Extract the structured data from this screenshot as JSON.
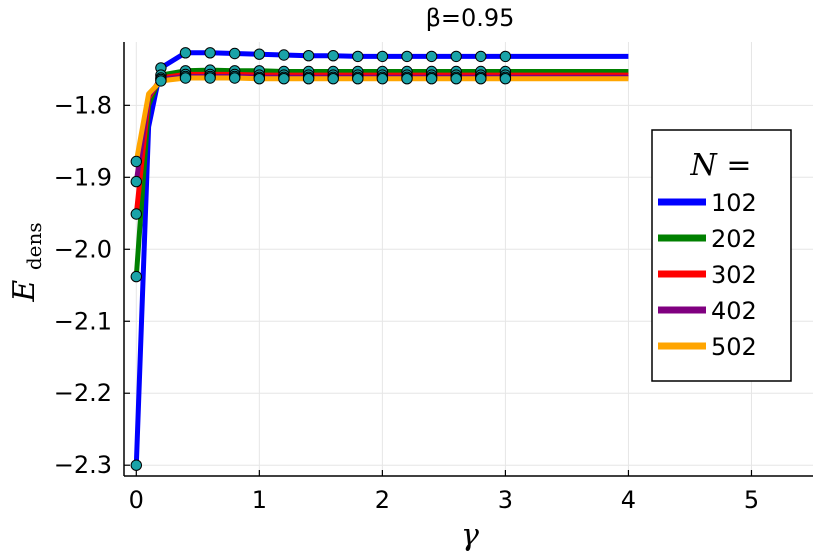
{
  "chart_data": {
    "type": "line",
    "title": "β=0.95",
    "xlabel": "γ",
    "ylabel_main": "E",
    "ylabel_sub": "dens",
    "xlim": [
      -0.1,
      5.5
    ],
    "ylim": [
      -2.315,
      -1.712
    ],
    "x_ticks": [
      0,
      1,
      2,
      3,
      4,
      5
    ],
    "x_tick_labels": [
      "0",
      "1",
      "2",
      "3",
      "4",
      "5"
    ],
    "y_ticks": [
      -1.8,
      -1.9,
      -2.0,
      -2.1,
      -2.2,
      -2.3
    ],
    "y_tick_labels": [
      "−1.8",
      "−1.9",
      "−2.0",
      "−2.1",
      "−2.2",
      "−2.3"
    ],
    "grid": true,
    "legend_title": "N =",
    "legend_position": "right",
    "marker_color": "#1aa3a8",
    "series": [
      {
        "name": "102",
        "color": "#0000ff",
        "line_x": [
          0,
          0.1,
          0.2,
          0.4,
          0.6,
          0.8,
          1.0,
          1.2,
          1.4,
          1.6,
          1.8,
          2.0,
          2.2,
          2.4,
          2.6,
          2.8,
          3.0,
          4.0
        ],
        "line_y": [
          -2.3,
          -1.83,
          -1.748,
          -1.727,
          -1.727,
          -1.728,
          -1.729,
          -1.73,
          -1.731,
          -1.731,
          -1.732,
          -1.732,
          -1.732,
          -1.732,
          -1.732,
          -1.732,
          -1.732,
          -1.732
        ],
        "markers_x": [
          0,
          0.2,
          0.4,
          0.6,
          0.8,
          1.0,
          1.2,
          1.4,
          1.6,
          1.8,
          2.0,
          2.2,
          2.4,
          2.6,
          2.8,
          3.0
        ],
        "markers_y": [
          -2.3,
          -1.748,
          -1.727,
          -1.727,
          -1.728,
          -1.729,
          -1.73,
          -1.731,
          -1.731,
          -1.732,
          -1.732,
          -1.732,
          -1.732,
          -1.732,
          -1.732,
          -1.732
        ]
      },
      {
        "name": "202",
        "color": "#008000",
        "line_x": [
          0,
          0.1,
          0.2,
          0.4,
          0.6,
          0.8,
          1.0,
          1.2,
          1.4,
          1.6,
          1.8,
          2.0,
          2.2,
          2.4,
          2.6,
          2.8,
          3.0,
          4.0
        ],
        "line_y": [
          -2.038,
          -1.8,
          -1.758,
          -1.752,
          -1.751,
          -1.752,
          -1.752,
          -1.753,
          -1.753,
          -1.753,
          -1.753,
          -1.753,
          -1.753,
          -1.753,
          -1.753,
          -1.753,
          -1.753,
          -1.753
        ],
        "markers_x": [
          0,
          0.2,
          0.4,
          0.6,
          0.8,
          1.0,
          1.2,
          1.4,
          1.6,
          1.8,
          2.0,
          2.2,
          2.4,
          2.6,
          2.8,
          3.0
        ],
        "markers_y": [
          -2.038,
          -1.758,
          -1.752,
          -1.751,
          -1.752,
          -1.752,
          -1.753,
          -1.753,
          -1.753,
          -1.753,
          -1.753,
          -1.753,
          -1.753,
          -1.753,
          -1.753,
          -1.753
        ]
      },
      {
        "name": "302",
        "color": "#ff0000",
        "line_x": [
          0,
          0.1,
          0.2,
          0.4,
          0.6,
          0.8,
          1.0,
          1.2,
          1.4,
          1.6,
          1.8,
          2.0,
          2.2,
          2.4,
          2.6,
          2.8,
          3.0,
          4.0
        ],
        "line_y": [
          -1.951,
          -1.79,
          -1.762,
          -1.757,
          -1.757,
          -1.757,
          -1.758,
          -1.758,
          -1.758,
          -1.758,
          -1.758,
          -1.758,
          -1.758,
          -1.758,
          -1.758,
          -1.758,
          -1.758,
          -1.758
        ],
        "markers_x": [
          0,
          0.2,
          0.4,
          0.6,
          0.8,
          1.0,
          1.2,
          1.4,
          1.6,
          1.8,
          2.0,
          2.2,
          2.4,
          2.6,
          2.8,
          3.0
        ],
        "markers_y": [
          -1.951,
          -1.762,
          -1.757,
          -1.757,
          -1.757,
          -1.758,
          -1.758,
          -1.758,
          -1.758,
          -1.758,
          -1.758,
          -1.758,
          -1.758,
          -1.758,
          -1.758,
          -1.758
        ]
      },
      {
        "name": "402",
        "color": "#800080",
        "line_x": [
          0,
          0.1,
          0.2,
          0.4,
          0.6,
          0.8,
          1.0,
          1.2,
          1.4,
          1.6,
          1.8,
          2.0,
          2.2,
          2.4,
          2.6,
          2.8,
          3.0,
          4.0
        ],
        "line_y": [
          -1.906,
          -1.787,
          -1.764,
          -1.76,
          -1.76,
          -1.76,
          -1.761,
          -1.761,
          -1.761,
          -1.761,
          -1.761,
          -1.761,
          -1.761,
          -1.761,
          -1.761,
          -1.761,
          -1.761,
          -1.761
        ],
        "markers_x": [
          0,
          0.2,
          0.4,
          0.6,
          0.8,
          1.0,
          1.2,
          1.4,
          1.6,
          1.8,
          2.0,
          2.2,
          2.4,
          2.6,
          2.8,
          3.0
        ],
        "markers_y": [
          -1.906,
          -1.764,
          -1.76,
          -1.76,
          -1.76,
          -1.761,
          -1.761,
          -1.761,
          -1.761,
          -1.761,
          -1.761,
          -1.761,
          -1.761,
          -1.761,
          -1.761,
          -1.761
        ]
      },
      {
        "name": "502",
        "color": "#ffa500",
        "line_x": [
          0,
          0.1,
          0.2,
          0.4,
          0.6,
          0.8,
          1.0,
          1.2,
          1.4,
          1.6,
          1.8,
          2.0,
          2.2,
          2.4,
          2.6,
          2.8,
          3.0,
          4.0
        ],
        "line_y": [
          -1.878,
          -1.784,
          -1.766,
          -1.762,
          -1.762,
          -1.762,
          -1.763,
          -1.763,
          -1.763,
          -1.763,
          -1.763,
          -1.763,
          -1.763,
          -1.763,
          -1.763,
          -1.763,
          -1.763,
          -1.763
        ],
        "markers_x": [
          0,
          0.2,
          0.4,
          0.6,
          0.8,
          1.0,
          1.2,
          1.4,
          1.6,
          1.8,
          2.0,
          2.2,
          2.4,
          2.6,
          2.8,
          3.0
        ],
        "markers_y": [
          -1.878,
          -1.766,
          -1.762,
          -1.762,
          -1.762,
          -1.763,
          -1.763,
          -1.763,
          -1.763,
          -1.763,
          -1.763,
          -1.763,
          -1.763,
          -1.763,
          -1.763,
          -1.763
        ]
      }
    ]
  }
}
